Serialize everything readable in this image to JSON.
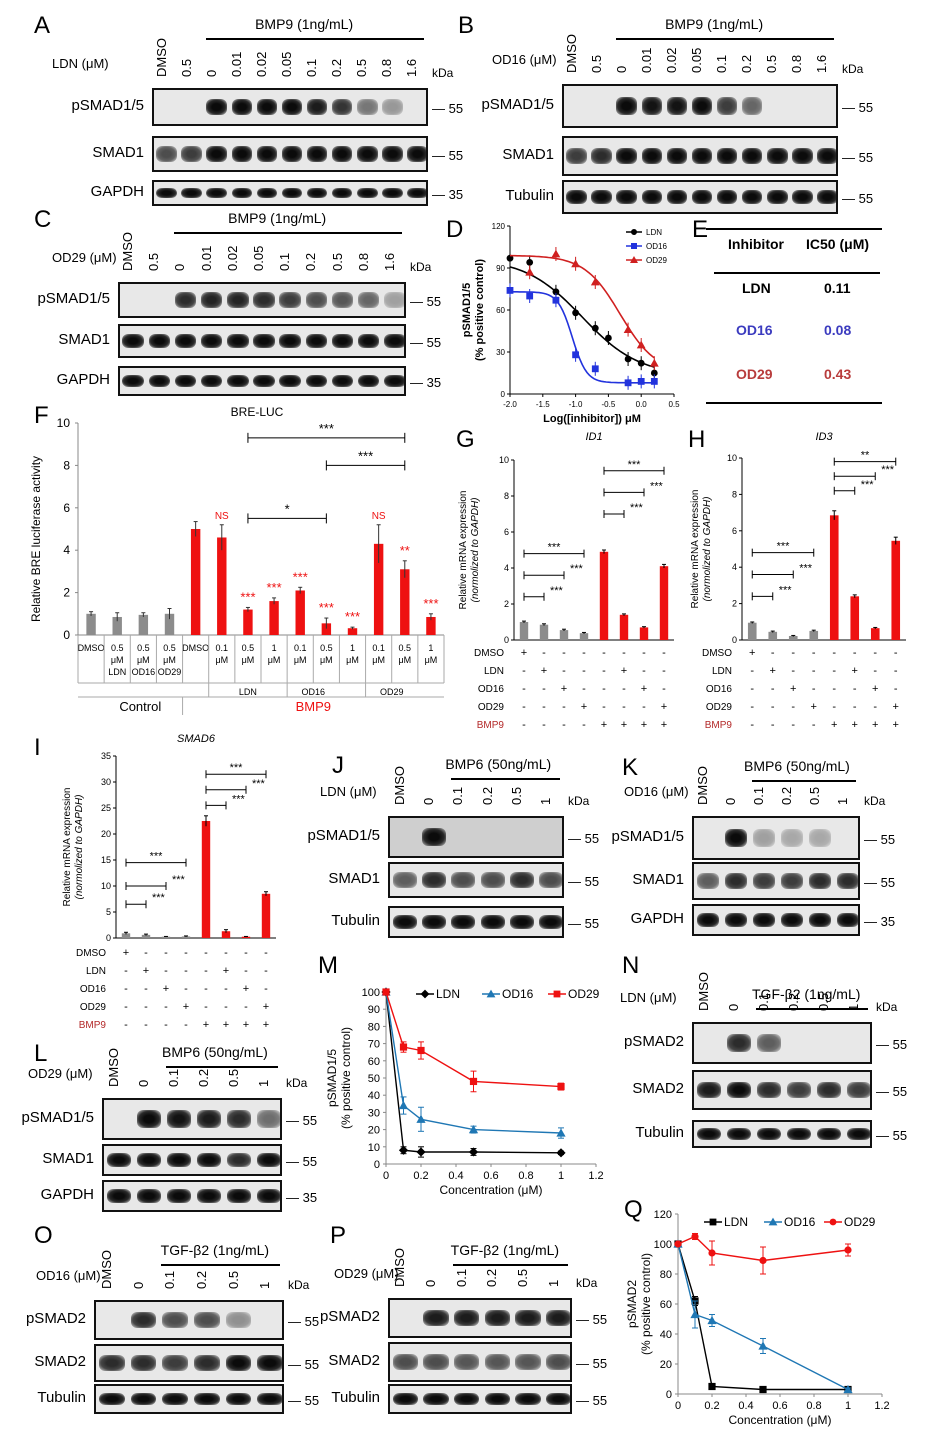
{
  "panels": {
    "A": {
      "label": "A",
      "treatment": "BMP9 (1ng/mL)",
      "inhibitor": "LDN (μM)",
      "lanes": [
        "DMSO",
        "0.5",
        "0",
        "0.01",
        "0.02",
        "0.05",
        "0.1",
        "0.2",
        "0.5",
        "0.8",
        "1.6"
      ],
      "rows": [
        "pSMAD1/5",
        "SMAD1",
        "GAPDH"
      ],
      "markers": [
        "55",
        "55",
        "35"
      ],
      "kda": "kDa"
    },
    "B": {
      "label": "B",
      "treatment": "BMP9 (1ng/mL)",
      "inhibitor": "OD16 (μM)",
      "lanes": [
        "DMSO",
        "0.5",
        "0",
        "0.01",
        "0.02",
        "0.05",
        "0.1",
        "0.2",
        "0.5",
        "0.8",
        "1.6"
      ],
      "rows": [
        "pSMAD1/5",
        "SMAD1",
        "Tubulin"
      ],
      "markers": [
        "55",
        "55",
        "55"
      ],
      "kda": "kDa"
    },
    "C": {
      "label": "C",
      "treatment": "BMP9 (1ng/mL)",
      "inhibitor": "OD29 (μM)",
      "lanes": [
        "DMSO",
        "0.5",
        "0",
        "0.01",
        "0.02",
        "0.05",
        "0.1",
        "0.2",
        "0.5",
        "0.8",
        "1.6"
      ],
      "rows": [
        "pSMAD1/5",
        "SMAD1",
        "GAPDH"
      ],
      "markers": [
        "55",
        "55",
        "35"
      ],
      "kda": "kDa"
    },
    "J": {
      "label": "J",
      "treatment": "BMP6 (50ng/mL)",
      "inhibitor": "LDN (μM)",
      "lanes": [
        "DMSO",
        "0",
        "0.1",
        "0.2",
        "0.5",
        "1"
      ],
      "rows": [
        "pSMAD1/5",
        "SMAD1",
        "Tubulin"
      ],
      "markers": [
        "55",
        "55",
        "55"
      ],
      "kda": "kDa"
    },
    "K": {
      "label": "K",
      "treatment": "BMP6 (50ng/mL)",
      "inhibitor": "OD16 (μM)",
      "lanes": [
        "DMSO",
        "0",
        "0.1",
        "0.2",
        "0.5",
        "1"
      ],
      "rows": [
        "pSMAD1/5",
        "SMAD1",
        "GAPDH"
      ],
      "markers": [
        "55",
        "55",
        "35"
      ],
      "kda": "kDa"
    },
    "L": {
      "label": "L",
      "treatment": "BMP6 (50ng/mL)",
      "inhibitor": "OD29 (μM)",
      "lanes": [
        "DMSO",
        "0",
        "0.1",
        "0.2",
        "0.5",
        "1"
      ],
      "rows": [
        "pSMAD1/5",
        "SMAD1",
        "GAPDH"
      ],
      "markers": [
        "55",
        "55",
        "35"
      ],
      "kda": "kDa"
    },
    "N": {
      "label": "N",
      "treatment": "TGF-β2 (1ng/mL)",
      "inhibitor": "LDN (μM)",
      "lanes": [
        "DMSO",
        "0",
        "0.1",
        "0.2",
        "0.5",
        "1"
      ],
      "rows": [
        "pSMAD2",
        "SMAD2",
        "Tubulin"
      ],
      "markers": [
        "55",
        "55",
        "55"
      ],
      "kda": "kDa"
    },
    "O": {
      "label": "O",
      "treatment": "TGF-β2 (1ng/mL)",
      "inhibitor": "OD16 (μM)",
      "lanes": [
        "DMSO",
        "0",
        "0.1",
        "0.2",
        "0.5",
        "1"
      ],
      "rows": [
        "pSMAD2",
        "SMAD2",
        "Tubulin"
      ],
      "markers": [
        "55",
        "55",
        "55"
      ],
      "kda": "kDa"
    },
    "P": {
      "label": "P",
      "treatment": "TGF-β2 (1ng/mL)",
      "inhibitor": "OD29 (μM)",
      "lanes": [
        "DMSO",
        "0",
        "0.1",
        "0.2",
        "0.5",
        "1"
      ],
      "rows": [
        "pSMAD2",
        "SMAD2",
        "Tubulin"
      ],
      "markers": [
        "55",
        "55",
        "55"
      ],
      "kda": "kDa"
    },
    "E": {
      "label": "E",
      "col1": "Inhibitor",
      "col2": "IC50 (μM)",
      "rows": [
        {
          "name": "LDN",
          "value": "0.11",
          "color": "#000000"
        },
        {
          "name": "OD16",
          "value": "0.08",
          "color": "#3b3bbf"
        },
        {
          "name": "OD29",
          "value": "0.43",
          "color": "#b83c3c"
        }
      ]
    }
  },
  "chart_data": [
    {
      "id": "D",
      "type": "line",
      "title": "",
      "xlabel": "Log([inhibitor]) μM",
      "ylabel": "pSMAD1/5 (% positive control)",
      "xlim": [
        -2.0,
        0.5
      ],
      "ylim": [
        0,
        120
      ],
      "xticks": [
        "-2.0",
        "-1.5",
        "-1.0",
        "-0.5",
        "0.0",
        "0.5"
      ],
      "yticks": [
        "0",
        "30",
        "60",
        "90",
        "120"
      ],
      "series": [
        {
          "name": "LDN",
          "color": "#000000",
          "marker": "circle",
          "x": [
            -2.0,
            -1.7,
            -1.3,
            -1.0,
            -0.7,
            -0.5,
            -0.2,
            0.0,
            0.2
          ],
          "y": [
            97,
            94,
            73,
            58,
            47,
            40,
            25,
            22,
            15
          ]
        },
        {
          "name": "OD16",
          "color": "#2233dd",
          "marker": "square",
          "x": [
            -2.0,
            -1.7,
            -1.3,
            -1.0,
            -0.7,
            -0.2,
            0.0,
            0.2
          ],
          "y": [
            74,
            70,
            67,
            28,
            18,
            8,
            9,
            9
          ]
        },
        {
          "name": "OD29",
          "color": "#d02020",
          "marker": "triangle",
          "x": [
            -1.7,
            -1.3,
            -1.0,
            -0.7,
            -0.2,
            0.0,
            0.2
          ],
          "y": [
            87,
            100,
            93,
            80,
            46,
            35,
            22
          ]
        }
      ]
    },
    {
      "id": "F",
      "type": "bar",
      "title": "BRE-LUC",
      "ylabel": "Relative BRE luciferase activity",
      "ylim": [
        0,
        10
      ],
      "yticks": [
        "0",
        "2",
        "4",
        "6",
        "8",
        "10"
      ],
      "categories": [
        "DMSO",
        "0.5 μM LDN",
        "0.5 μM OD16",
        "0.5 μM OD29",
        "DMSO",
        "0.1 μM",
        "0.5 μM",
        "1 μM",
        "0.1 μM",
        "0.5 μM",
        "1 μM",
        "0.1 μM",
        "0.5 μM",
        "1 μM"
      ],
      "values": [
        1.0,
        0.85,
        0.95,
        1.0,
        5.0,
        4.6,
        1.2,
        1.6,
        2.1,
        0.55,
        0.32,
        4.3,
        3.1,
        0.85
      ],
      "errors": [
        0.1,
        0.2,
        0.1,
        0.25,
        0.35,
        0.6,
        0.1,
        0.15,
        0.15,
        0.25,
        0.05,
        0.9,
        0.4,
        0.15
      ],
      "colors": [
        "#8c8c8c",
        "#8c8c8c",
        "#8c8c8c",
        "#8c8c8c",
        "#ee1111",
        "#ee1111",
        "#ee1111",
        "#ee1111",
        "#ee1111",
        "#ee1111",
        "#ee1111",
        "#ee1111",
        "#ee1111",
        "#ee1111"
      ],
      "sig": [
        "",
        "",
        "",
        "",
        "",
        "NS",
        "***",
        "***",
        "***",
        "***",
        "***",
        "NS",
        "**",
        "***"
      ],
      "group_labels": {
        "ldn": "LDN",
        "od16": "OD16",
        "od29": "OD29",
        "control": "Control",
        "bmp9": "BMP9"
      },
      "brackets": [
        {
          "from": 6,
          "to": 12,
          "label": "***"
        },
        {
          "from": 9,
          "to": 12,
          "label": "***"
        },
        {
          "from": 6,
          "to": 9,
          "label": "*"
        }
      ]
    },
    {
      "id": "G",
      "type": "bar",
      "title": "ID1",
      "ylabel": "Relative mRNA expression (normolized to GAPDH)",
      "ylim": [
        0,
        10
      ],
      "yticks": [
        "0",
        "2",
        "4",
        "6",
        "8",
        "10"
      ],
      "values": [
        1.0,
        0.85,
        0.55,
        0.38,
        4.9,
        1.4,
        0.7,
        4.1
      ],
      "errors": [
        0.05,
        0.05,
        0.05,
        0.04,
        0.1,
        0.05,
        0.04,
        0.1
      ],
      "colors": [
        "#8c8c8c",
        "#8c8c8c",
        "#8c8c8c",
        "#8c8c8c",
        "#ee1111",
        "#ee1111",
        "#ee1111",
        "#ee1111"
      ],
      "rowlabels": [
        "DMSO",
        "LDN",
        "OD16",
        "OD29",
        "BMP9"
      ],
      "rows": [
        [
          "+",
          "-",
          "-",
          "-",
          "-",
          "-",
          "-",
          "-"
        ],
        [
          "-",
          "+",
          "-",
          "-",
          "-",
          "+",
          "-",
          "-"
        ],
        [
          "-",
          "-",
          "+",
          "-",
          "-",
          "-",
          "+",
          "-"
        ],
        [
          "-",
          "-",
          "-",
          "+",
          "-",
          "-",
          "-",
          "+"
        ],
        [
          "-",
          "-",
          "-",
          "-",
          "+",
          "+",
          "+",
          "+"
        ]
      ],
      "brackets": [
        {
          "from": 0,
          "to": 1,
          "y": 2.4,
          "label": "***"
        },
        {
          "from": 0,
          "to": 2,
          "y": 3.6,
          "label": "***"
        },
        {
          "from": 0,
          "to": 3,
          "y": 4.8,
          "label": "***"
        },
        {
          "from": 4,
          "to": 5,
          "y": 7.0,
          "label": "***"
        },
        {
          "from": 4,
          "to": 6,
          "y": 8.2,
          "label": "***"
        },
        {
          "from": 4,
          "to": 7,
          "y": 9.4,
          "label": "***"
        }
      ]
    },
    {
      "id": "H",
      "type": "bar",
      "title": "ID3",
      "ylabel": "Relative mRNA expression (normolized to GAPDH)",
      "ylim": [
        0,
        10
      ],
      "yticks": [
        "0",
        "2",
        "4",
        "6",
        "8",
        "10"
      ],
      "values": [
        0.95,
        0.45,
        0.22,
        0.5,
        6.85,
        2.4,
        0.65,
        5.45
      ],
      "errors": [
        0.04,
        0.04,
        0.03,
        0.04,
        0.25,
        0.08,
        0.04,
        0.2
      ],
      "colors": [
        "#8c8c8c",
        "#8c8c8c",
        "#8c8c8c",
        "#8c8c8c",
        "#ee1111",
        "#ee1111",
        "#ee1111",
        "#ee1111"
      ],
      "rowlabels": [
        "DMSO",
        "LDN",
        "OD16",
        "OD29",
        "BMP9"
      ],
      "rows": [
        [
          "+",
          "-",
          "-",
          "-",
          "-",
          "-",
          "-",
          "-"
        ],
        [
          "-",
          "+",
          "-",
          "-",
          "-",
          "+",
          "-",
          "-"
        ],
        [
          "-",
          "-",
          "+",
          "-",
          "-",
          "-",
          "+",
          "-"
        ],
        [
          "-",
          "-",
          "-",
          "+",
          "-",
          "-",
          "-",
          "+"
        ],
        [
          "-",
          "-",
          "-",
          "-",
          "+",
          "+",
          "+",
          "+"
        ]
      ],
      "brackets": [
        {
          "from": 0,
          "to": 1,
          "y": 2.4,
          "label": "***"
        },
        {
          "from": 0,
          "to": 2,
          "y": 3.6,
          "label": "***"
        },
        {
          "from": 0,
          "to": 3,
          "y": 4.8,
          "label": "***"
        },
        {
          "from": 4,
          "to": 5,
          "y": 8.2,
          "label": "***"
        },
        {
          "from": 4,
          "to": 6,
          "y": 9.0,
          "label": "***"
        },
        {
          "from": 4,
          "to": 7,
          "y": 9.8,
          "label": "**"
        }
      ]
    },
    {
      "id": "I",
      "type": "bar",
      "title": "SMAD6",
      "ylabel": "Relative mRNA expression (normolized to GAPDH)",
      "ylim": [
        0,
        35
      ],
      "yticks": [
        "0",
        "5",
        "10",
        "15",
        "20",
        "25",
        "30",
        "35"
      ],
      "values": [
        0.9,
        0.6,
        0.25,
        0.3,
        22.5,
        1.3,
        0.25,
        8.5
      ],
      "errors": [
        0.2,
        0.15,
        0.05,
        0.1,
        1.0,
        0.3,
        0.05,
        0.4
      ],
      "colors": [
        "#8c8c8c",
        "#8c8c8c",
        "#8c8c8c",
        "#8c8c8c",
        "#ee1111",
        "#ee1111",
        "#ee1111",
        "#ee1111"
      ],
      "rowlabels": [
        "DMSO",
        "LDN",
        "OD16",
        "OD29",
        "BMP9"
      ],
      "rows": [
        [
          "+",
          "-",
          "-",
          "-",
          "-",
          "-",
          "-",
          "-"
        ],
        [
          "-",
          "+",
          "-",
          "-",
          "-",
          "+",
          "-",
          "-"
        ],
        [
          "-",
          "-",
          "+",
          "-",
          "-",
          "-",
          "+",
          "-"
        ],
        [
          "-",
          "-",
          "-",
          "+",
          "-",
          "-",
          "-",
          "+"
        ],
        [
          "-",
          "-",
          "-",
          "-",
          "+",
          "+",
          "+",
          "+"
        ]
      ],
      "brackets": [
        {
          "from": 0,
          "to": 1,
          "y": 6.5,
          "label": "***"
        },
        {
          "from": 0,
          "to": 2,
          "y": 10.0,
          "label": "***"
        },
        {
          "from": 0,
          "to": 3,
          "y": 14.5,
          "label": "***"
        },
        {
          "from": 4,
          "to": 5,
          "y": 25.5,
          "label": "***"
        },
        {
          "from": 4,
          "to": 6,
          "y": 28.5,
          "label": "***"
        },
        {
          "from": 4,
          "to": 7,
          "y": 31.5,
          "label": "***"
        }
      ]
    },
    {
      "id": "M",
      "type": "line",
      "xlabel": "Concentration  (μM)",
      "ylabel": "pSMAD1/5 (% positive control)",
      "xlim": [
        0,
        1.2
      ],
      "ylim": [
        0,
        100
      ],
      "xticks": [
        "0",
        "0.2",
        "0.4",
        "0.6",
        "0.8",
        "1",
        "1.2"
      ],
      "yticks": [
        "0",
        "10",
        "20",
        "30",
        "40",
        "50",
        "60",
        "70",
        "80",
        "90",
        "100"
      ],
      "series": [
        {
          "name": "LDN",
          "color": "#000000",
          "marker": "diamond",
          "x": [
            0,
            0.1,
            0.2,
            0.5,
            1.0
          ],
          "y": [
            100,
            8,
            7,
            7,
            6.5
          ],
          "err": [
            0,
            2,
            3,
            2,
            1
          ]
        },
        {
          "name": "OD16",
          "color": "#1f77b4",
          "marker": "triangle",
          "x": [
            0,
            0.1,
            0.2,
            0.5,
            1.0
          ],
          "y": [
            100,
            34,
            26,
            20,
            18
          ],
          "err": [
            0,
            5,
            7,
            2,
            3
          ]
        },
        {
          "name": "OD29",
          "color": "#ee1111",
          "marker": "square",
          "x": [
            0,
            0.1,
            0.2,
            0.5,
            1.0
          ],
          "y": [
            100,
            68,
            66,
            48,
            45
          ],
          "err": [
            0,
            3,
            5,
            6,
            2
          ]
        }
      ]
    },
    {
      "id": "Q",
      "type": "line",
      "xlabel": "Concentration  (μM)",
      "ylabel": "pSMAD2 (% positive control)",
      "xlim": [
        0,
        1.2
      ],
      "ylim": [
        0,
        120
      ],
      "xticks": [
        "0",
        "0.2",
        "0.4",
        "0.6",
        "0.8",
        "1",
        "1.2"
      ],
      "yticks": [
        "0",
        "20",
        "40",
        "60",
        "80",
        "100",
        "120"
      ],
      "series": [
        {
          "name": "LDN",
          "color": "#000000",
          "marker": "square",
          "x": [
            0,
            0.1,
            0.2,
            0.5,
            1.0
          ],
          "y": [
            100,
            62,
            5,
            3,
            3
          ],
          "err": [
            0,
            3,
            0,
            0,
            0
          ]
        },
        {
          "name": "OD16",
          "color": "#1f77b4",
          "marker": "triangle",
          "x": [
            0,
            0.1,
            0.2,
            0.5,
            1.0
          ],
          "y": [
            100,
            53,
            49,
            32,
            3
          ],
          "err": [
            0,
            9,
            4,
            5,
            1
          ]
        },
        {
          "name": "OD29",
          "color": "#ee1111",
          "marker": "circle",
          "x": [
            0,
            0.1,
            0.2,
            0.5,
            1.0
          ],
          "y": [
            100,
            105,
            94,
            89,
            96
          ],
          "err": [
            0,
            2,
            8,
            9,
            4
          ]
        }
      ]
    }
  ]
}
